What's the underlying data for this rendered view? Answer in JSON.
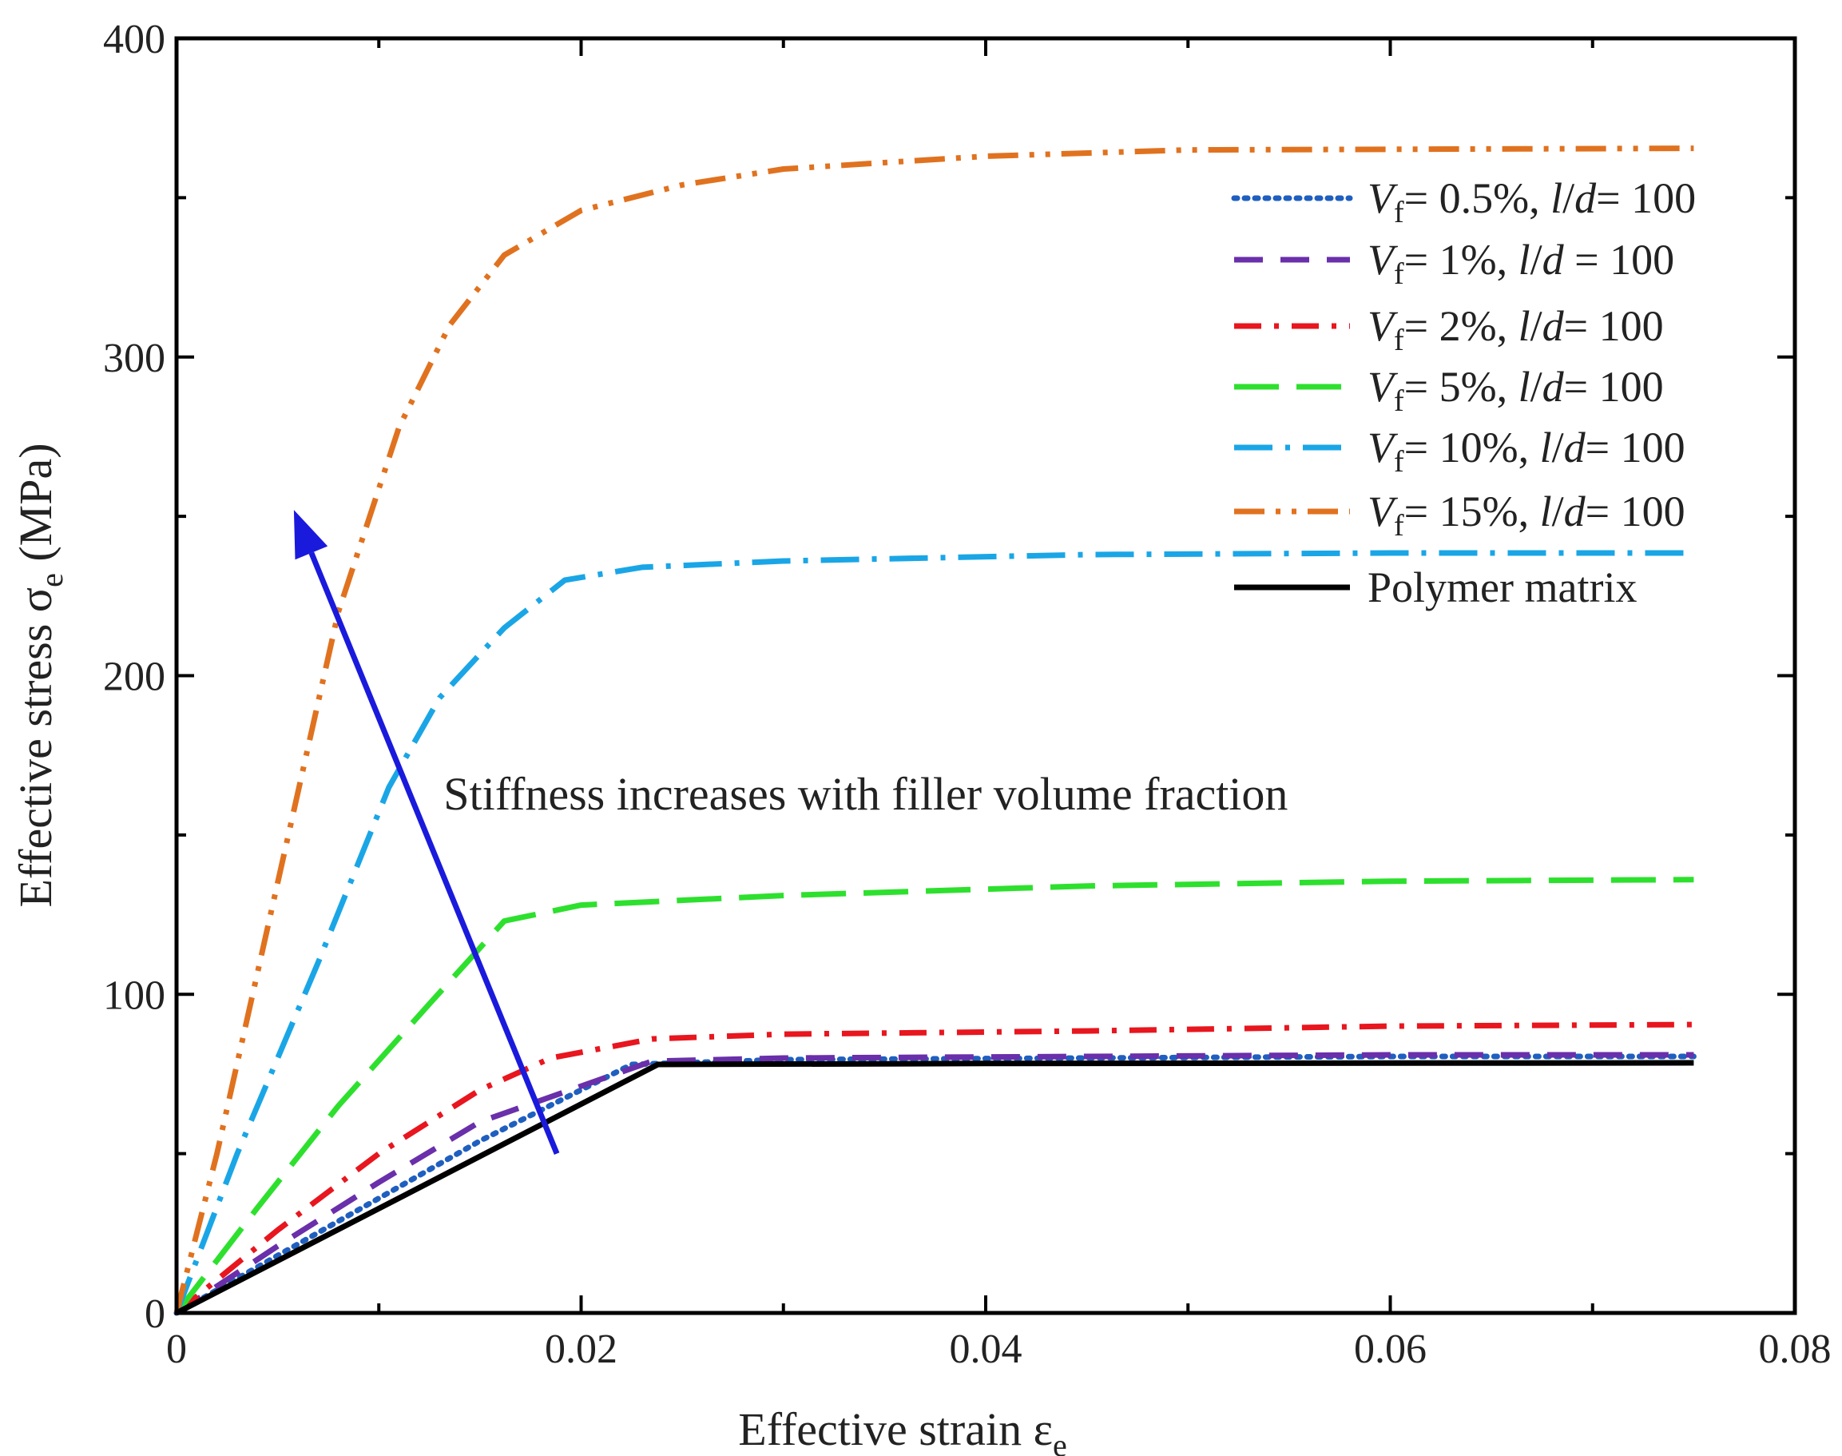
{
  "chart_data": {
    "type": "line",
    "title": "",
    "xlabel": "Effective strain ε",
    "xlabel_sub": "e",
    "ylabel": "Effective stress σ",
    "ylabel_sub": "e",
    "ylabel_unit": " (MPa)",
    "xlim": [
      0,
      0.08
    ],
    "ylim": [
      0,
      400
    ],
    "x_ticks": [
      0,
      0.02,
      0.04,
      0.06,
      0.08
    ],
    "x_tick_labels": [
      "0",
      "0.02",
      "0.04",
      "0.06",
      "0.08"
    ],
    "x_minor_ticks": [
      0.01,
      0.03,
      0.05,
      0.07
    ],
    "y_ticks": [
      0,
      100,
      200,
      300,
      400
    ],
    "y_tick_labels": [
      "0",
      "100",
      "200",
      "300",
      "400"
    ],
    "y_minor_ticks": [
      50,
      150,
      250,
      350
    ],
    "grid": false,
    "legend_position": "top-right",
    "series": [
      {
        "name": "Vf= 0.5%, l/d= 100",
        "legend": {
          "v": "V",
          "sub": "f",
          "eq": "= 0.5%, ",
          "l": "l",
          "slash": "/",
          "d": "d",
          "rest": "= 100"
        },
        "color": "#1f5fbf",
        "dash": "dot",
        "points": [
          [
            0,
            0
          ],
          [
            0.005,
            18
          ],
          [
            0.01,
            36
          ],
          [
            0.015,
            54
          ],
          [
            0.0225,
            78
          ],
          [
            0.03,
            79.5
          ],
          [
            0.045,
            80
          ],
          [
            0.06,
            80.5
          ],
          [
            0.075,
            80.5
          ]
        ]
      },
      {
        "name": "Vf= 1%, l/d = 100",
        "legend": {
          "v": "V",
          "sub": "f",
          "eq": "= 1%, ",
          "l": "l",
          "slash": "/",
          "d": "d",
          "rest": " = 100"
        },
        "color": "#6a2faa",
        "dash": "dash",
        "points": [
          [
            0,
            0
          ],
          [
            0.005,
            21
          ],
          [
            0.01,
            41
          ],
          [
            0.015,
            60
          ],
          [
            0.0235,
            79
          ],
          [
            0.03,
            80
          ],
          [
            0.045,
            80.5
          ],
          [
            0.06,
            81
          ],
          [
            0.075,
            81
          ]
        ]
      },
      {
        "name": "Vf= 2%, l/d= 100",
        "legend": {
          "v": "V",
          "sub": "f",
          "eq": "= 2%, ",
          "l": "l",
          "slash": "/",
          "d": "d",
          "rest": "= 100"
        },
        "color": "#e8161e",
        "dash": "dashdot",
        "points": [
          [
            0,
            0
          ],
          [
            0.005,
            26
          ],
          [
            0.01,
            50
          ],
          [
            0.015,
            70
          ],
          [
            0.0185,
            80
          ],
          [
            0.0235,
            86
          ],
          [
            0.03,
            87.5
          ],
          [
            0.045,
            88.5
          ],
          [
            0.06,
            90
          ],
          [
            0.075,
            90.5
          ]
        ]
      },
      {
        "name": "Vf= 5%, l/d= 100",
        "legend": {
          "v": "V",
          "sub": "f",
          "eq": "= 5%, ",
          "l": "l",
          "slash": "/",
          "d": "d",
          "rest": "= 100"
        },
        "color": "#2ee02e",
        "dash": "longdash",
        "points": [
          [
            0,
            0
          ],
          [
            0.004,
            33
          ],
          [
            0.008,
            65
          ],
          [
            0.0125,
            97
          ],
          [
            0.0162,
            123
          ],
          [
            0.02,
            128
          ],
          [
            0.03,
            131
          ],
          [
            0.045,
            134
          ],
          [
            0.06,
            135.5
          ],
          [
            0.075,
            136
          ]
        ]
      },
      {
        "name": "Vf= 10%, l/d= 100",
        "legend": {
          "v": "V",
          "sub": "f",
          "eq": "= 10%, ",
          "l": "l",
          "slash": "/",
          "d": "d",
          "rest": "= 100"
        },
        "color": "#1aa6e6",
        "dash": "longdashdot",
        "points": [
          [
            0,
            0
          ],
          [
            0.003,
            50
          ],
          [
            0.007,
            110
          ],
          [
            0.0105,
            165
          ],
          [
            0.013,
            193
          ],
          [
            0.0162,
            215
          ],
          [
            0.0192,
            230
          ],
          [
            0.023,
            234
          ],
          [
            0.03,
            236
          ],
          [
            0.045,
            238
          ],
          [
            0.06,
            238.5
          ],
          [
            0.075,
            238.5
          ]
        ]
      },
      {
        "name": "Vf= 15%, l/d= 100",
        "legend": {
          "v": "V",
          "sub": "f",
          "eq": "= 15%, ",
          "l": "l",
          "slash": "/",
          "d": "d",
          "rest": "= 100"
        },
        "color": "#e0721f",
        "dash": "dashdotdot",
        "points": [
          [
            0,
            0
          ],
          [
            0.002,
            50
          ],
          [
            0.005,
            135
          ],
          [
            0.008,
            220
          ],
          [
            0.011,
            278
          ],
          [
            0.0135,
            310
          ],
          [
            0.0162,
            332
          ],
          [
            0.02,
            346
          ],
          [
            0.025,
            354
          ],
          [
            0.03,
            359
          ],
          [
            0.04,
            363
          ],
          [
            0.05,
            365
          ],
          [
            0.075,
            365.5
          ]
        ]
      },
      {
        "name": "Polymer matrix",
        "legend": {
          "plain": "Polymer matrix"
        },
        "color": "#000000",
        "dash": "solid",
        "points": [
          [
            0,
            0
          ],
          [
            0.0238,
            78
          ],
          [
            0.04,
            78.3
          ],
          [
            0.075,
            78.5
          ]
        ]
      }
    ],
    "annotation": {
      "text": "Stiffness increases with filler volume fraction",
      "anchor": [
        0.0132,
        163
      ],
      "arrow_from": [
        0.0188,
        50
      ],
      "arrow_to": [
        0.0058,
        252
      ],
      "arrow_color": "#1a1adc"
    }
  }
}
